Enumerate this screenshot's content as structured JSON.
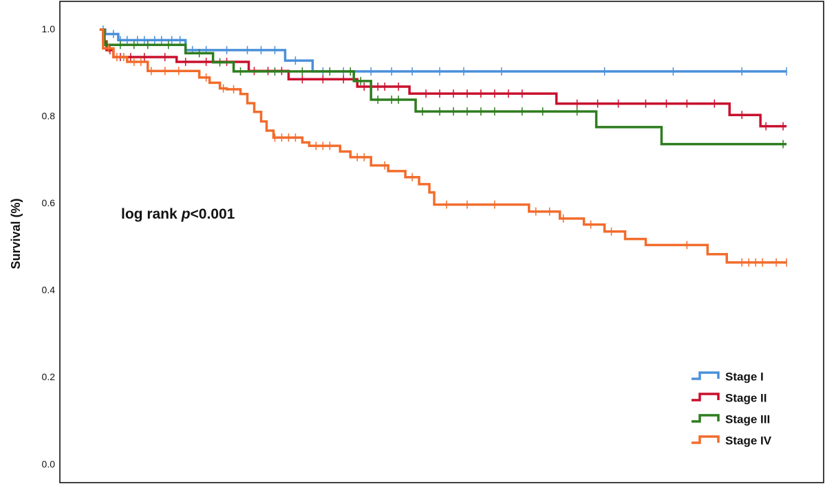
{
  "chart_data": {
    "type": "step",
    "y_label": "Survival (%)",
    "annotation": {
      "text": "log rank",
      "italic": "p",
      "suffix": "<0.001"
    },
    "ylim": [
      -0.041,
      1.065
    ],
    "yticks": [
      {
        "value": 0,
        "label": "0.0"
      },
      0.2,
      0.4,
      0.6,
      0.8,
      {
        "value": 1,
        "label": "1.0"
      }
    ],
    "xlim": [
      -5.8,
      105.4
    ],
    "legend": "lower right",
    "series": [
      {
        "name": "Stage I",
        "color": "#4a90d9",
        "x": [
          0,
          0.8,
          2.7,
          12.5,
          27,
          31,
          100
        ],
        "values": [
          1.0,
          0.99,
          0.976,
          0.953,
          0.929,
          0.904,
          0.904
        ],
        "censored": [
          0.5,
          2,
          3,
          4,
          5.5,
          6.5,
          8,
          9,
          10.5,
          11.7,
          13.5,
          15.5,
          18.5,
          21.5,
          23.5,
          25.5,
          28.5,
          32.5,
          35.5,
          39.5,
          42.5,
          45.5,
          49.5,
          53,
          58.5,
          73.5,
          83.5,
          93.5,
          100
        ]
      },
      {
        "name": "Stage II",
        "color": "#c8102e",
        "x": [
          0,
          0.5,
          1,
          2,
          11.2,
          21.7,
          27.5,
          37.5,
          45.1,
          66.5,
          91.7,
          96.2,
          100
        ],
        "values": [
          1.0,
          0.973,
          0.953,
          0.937,
          0.926,
          0.905,
          0.886,
          0.869,
          0.853,
          0.83,
          0.804,
          0.778,
          0.778
        ],
        "censored": [
          0.5,
          1.5,
          3,
          4.5,
          6.5,
          9.5,
          12.5,
          15.5,
          18.5,
          22.5,
          24.5,
          26.5,
          29.5,
          32.5,
          35.5,
          38.5,
          40.5,
          41.5,
          43.5,
          47.5,
          49.5,
          51.5,
          53.5,
          55.5,
          57.5,
          59.5,
          61.5,
          69.5,
          72.5,
          75.5,
          79.5,
          82.5,
          85.5,
          89.5,
          93.5,
          97,
          99.5
        ]
      },
      {
        "name": "Stage III",
        "color": "#2e7d1f",
        "x": [
          0,
          0.7,
          12.5,
          16.5,
          19.5,
          37,
          39.5,
          46,
          72.3,
          81.8,
          100
        ],
        "values": [
          1.0,
          0.965,
          0.946,
          0.925,
          0.904,
          0.882,
          0.839,
          0.812,
          0.776,
          0.737,
          0.737
        ],
        "censored": [
          1,
          3,
          5,
          7,
          10,
          14.5,
          17.5,
          20.5,
          25.5,
          29.5,
          33.5,
          36.5,
          38,
          40.5,
          42.5,
          43.5,
          47,
          49.5,
          51.5,
          53.5,
          55.5,
          57.5,
          61.5,
          64.5,
          69.5,
          99.5
        ]
      },
      {
        "name": "Stage IV",
        "color": "#f26c2c",
        "x": [
          0,
          0.5,
          2,
          4,
          7,
          14.5,
          16,
          17.5,
          18.5,
          20.5,
          21.5,
          22.5,
          23.5,
          24.3,
          25.3,
          29.5,
          30.5,
          35,
          36.5,
          39.5,
          42,
          44.5,
          46.5,
          48,
          48.7,
          62.5,
          67,
          70.5,
          73.5,
          76.5,
          79.5,
          88.5,
          91.3,
          100
        ],
        "values": [
          1.0,
          0.957,
          0.937,
          0.926,
          0.905,
          0.89,
          0.878,
          0.865,
          0.863,
          0.852,
          0.831,
          0.811,
          0.789,
          0.768,
          0.752,
          0.741,
          0.733,
          0.72,
          0.707,
          0.688,
          0.675,
          0.661,
          0.645,
          0.626,
          0.598,
          0.582,
          0.566,
          0.552,
          0.536,
          0.519,
          0.505,
          0.484,
          0.465,
          0.465
        ],
        "censored": [
          1.3,
          2.5,
          3.5,
          5,
          6,
          7.5,
          9.5,
          11.5,
          15.5,
          18,
          19.5,
          25.5,
          26.5,
          27.5,
          28.5,
          31.5,
          32.5,
          33.5,
          37.5,
          38.5,
          41.5,
          45.5,
          50.5,
          53.5,
          57.5,
          63.5,
          65.5,
          67.5,
          71.5,
          74.5,
          85.5,
          93.5,
          94.5,
          95.5,
          96.5,
          98.5,
          100
        ]
      }
    ]
  }
}
